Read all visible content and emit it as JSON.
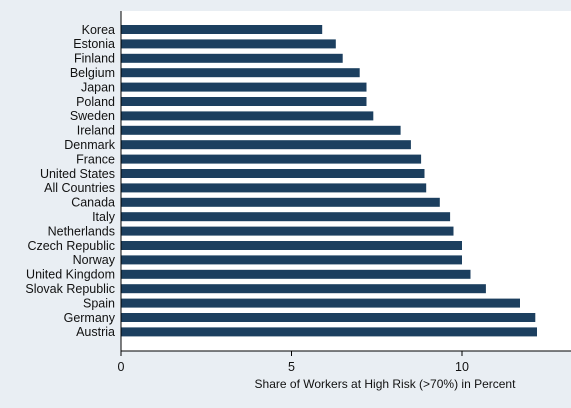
{
  "chart_data": {
    "type": "bar",
    "orientation": "horizontal",
    "title": "",
    "xlabel": "Share of Workers at High Risk (>70%) in Percent",
    "ylabel": "",
    "xlim": [
      0,
      13.2
    ],
    "xticks": [
      0,
      5,
      10
    ],
    "grid": false,
    "legend": "none",
    "bar_color": "#1c3f5f",
    "background": "#e9eef3",
    "plot_background": "#ffffff",
    "categories": [
      "Korea",
      "Estonia",
      "Finland",
      "Belgium",
      "Japan",
      "Poland",
      "Sweden",
      "Ireland",
      "Denmark",
      "France",
      "United States",
      "All Countries",
      "Canada",
      "Italy",
      "Netherlands",
      "Czech Republic",
      "Norway",
      "United Kingdom",
      "Slovak Republic",
      "Spain",
      "Germany",
      "Austria"
    ],
    "values": [
      5.9,
      6.3,
      6.5,
      7.0,
      7.2,
      7.2,
      7.4,
      8.2,
      8.5,
      8.8,
      8.9,
      8.95,
      9.35,
      9.65,
      9.75,
      10.0,
      10.0,
      10.25,
      10.7,
      11.7,
      12.15,
      12.2
    ]
  }
}
